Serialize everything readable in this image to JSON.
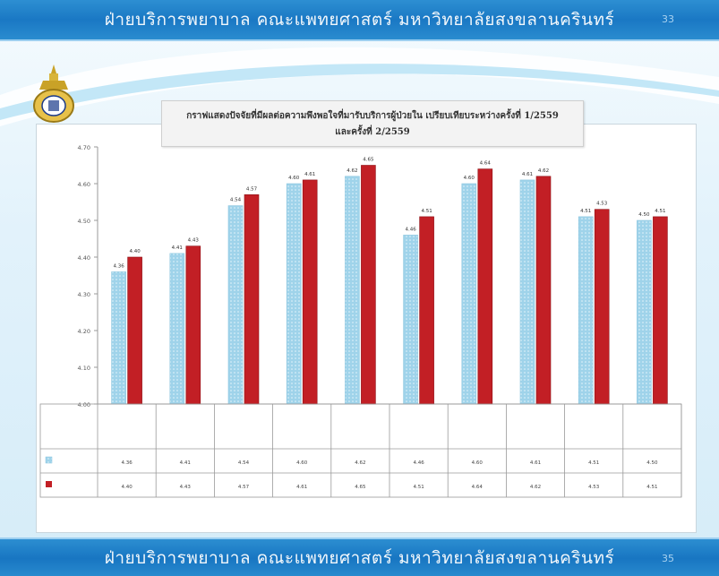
{
  "header": {
    "title": "ฝ่ายบริการพยาบาล คณะแพทยศาสตร์ มหาวิทยาลัยสงขลานครินทร์",
    "page_number": "33"
  },
  "footer": {
    "title": "ฝ่ายบริการพยาบาล คณะแพทยศาสตร์ มหาวิทยาลัยสงขลานครินทร์",
    "page_number": "35"
  },
  "colors": {
    "series1": "#9fd3ea",
    "series2": "#c21f25",
    "band": "#1a78c4",
    "accent": "#b3e0f5"
  },
  "logo_icon": "university-crest-icon",
  "chart_data": {
    "type": "bar",
    "title": "กราฟแสดงปัจจัยที่มีผลต่อความพึงพอใจที่มารับบริการผู้ป่วยใน เปรียบเทียบระหว่างครั้งที่ 1/2559",
    "subtitle": "และครั้งที่ 2/2559",
    "ylim": [
      4.0,
      4.7
    ],
    "yticks": [
      "4.00",
      "4.10",
      "4.20",
      "4.30",
      "4.40",
      "4.50",
      "4.60",
      "4.70"
    ],
    "grid": false,
    "categories": [
      "",
      "",
      "",
      "",
      "",
      "",
      "",
      "",
      "",
      ""
    ],
    "series": [
      {
        "name": "",
        "values": [
          4.36,
          4.41,
          4.54,
          4.6,
          4.62,
          4.46,
          4.6,
          4.61,
          4.51,
          4.5
        ]
      },
      {
        "name": "",
        "values": [
          4.4,
          4.43,
          4.57,
          4.61,
          4.65,
          4.51,
          4.64,
          4.62,
          4.53,
          4.51
        ]
      }
    ],
    "value_labels": [
      [
        "4.36",
        "4.41",
        "4.54",
        "4.60",
        "4.62",
        "4.46",
        "4.60",
        "4.61",
        "4.51",
        "4.50"
      ],
      [
        "4.40",
        "4.43",
        "4.57",
        "4.61",
        "4.65",
        "4.51",
        "4.64",
        "4.62",
        "4.53",
        "4.51"
      ]
    ]
  }
}
